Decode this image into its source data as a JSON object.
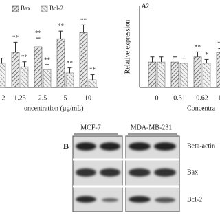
{
  "chart_data": [
    {
      "type": "bar",
      "categories": [
        "2",
        "1.25",
        "2.5",
        "5",
        "10"
      ],
      "xlabel": "oncentration (µg/mL)",
      "ylim": [
        0,
        3.2
      ],
      "series": [
        {
          "name": "Bax",
          "color": "#555555",
          "values": [
            0.9,
            1.38,
            1.6,
            1.92,
            2.16
          ],
          "errors": [
            0.2,
            0.4,
            0.35,
            0.3,
            0.3
          ],
          "significance": [
            null,
            "**",
            "**",
            "**",
            "**"
          ]
        },
        {
          "name": "Bcl-2",
          "color": "#777777",
          "values": [
            0.95,
            0.81,
            0.7,
            0.57,
            0.3
          ],
          "errors": [
            0.2,
            0.2,
            0.2,
            0.2,
            0.2
          ],
          "significance": [
            null,
            "**",
            "**",
            "**",
            "**"
          ]
        }
      ]
    },
    {
      "type": "bar",
      "title": "A2",
      "categories": [
        "0",
        "0.31",
        "0.62",
        "1"
      ],
      "xlabel": "Concentra",
      "ylabel": "Relative expression",
      "ylim": [
        0,
        3.2
      ],
      "series": [
        {
          "name": "Bax",
          "color": "#555555",
          "values": [
            1.0,
            1.0,
            1.2,
            1.38
          ],
          "errors": [
            0.2,
            0.2,
            0.2,
            0.15
          ],
          "significance": [
            null,
            null,
            "**",
            "**"
          ]
        },
        {
          "name": "Bcl-2",
          "color": "#777777",
          "values": [
            1.0,
            0.95,
            0.95,
            1.2
          ],
          "errors": [
            0.2,
            0.2,
            0.15,
            0.15
          ],
          "significance": [
            null,
            null,
            "*",
            null
          ]
        }
      ]
    }
  ],
  "blot": {
    "label": "B",
    "cell_lines": [
      "MCF-7",
      "MDA-MB-231"
    ],
    "rows": [
      "Beta-actin",
      "Bax",
      "Bcl-2"
    ]
  }
}
